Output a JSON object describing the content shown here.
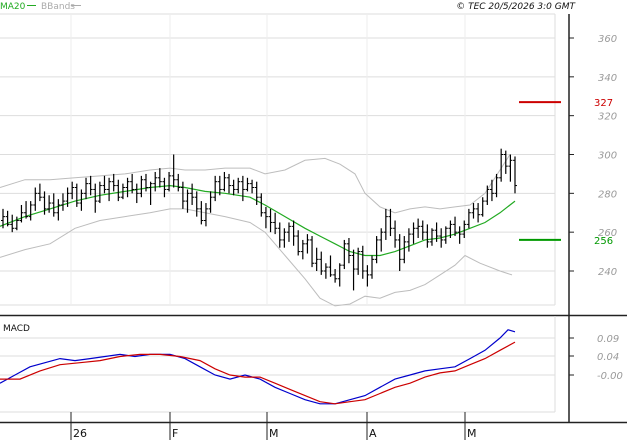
{
  "chart_data": [
    {
      "type": "ohlc",
      "panel": "price",
      "legend": [
        "MA20",
        "BBands"
      ],
      "copyright": "© TEC 20/5/2026 3:0 GMT",
      "y_ticks": [
        240,
        260,
        280,
        300,
        320,
        340,
        360
      ],
      "ylim": [
        220,
        370
      ],
      "grid": true,
      "x_labels": [
        "26",
        "F",
        "M",
        "A",
        "M"
      ],
      "levels": [
        {
          "label": "327",
          "value": 327,
          "color": "#cc0000"
        },
        {
          "label": "256",
          "value": 256,
          "color": "#009900"
        }
      ],
      "ohlc": [
        [
          266,
          272,
          262,
          268
        ],
        [
          268,
          271,
          263,
          264
        ],
        [
          264,
          269,
          260,
          262
        ],
        [
          262,
          268,
          261,
          266
        ],
        [
          266,
          274,
          265,
          270
        ],
        [
          270,
          276,
          267,
          268
        ],
        [
          268,
          276,
          266,
          274
        ],
        [
          274,
          283,
          271,
          280
        ],
        [
          280,
          285,
          276,
          278
        ],
        [
          278,
          281,
          269,
          272
        ],
        [
          272,
          279,
          270,
          275
        ],
        [
          275,
          280,
          268,
          270
        ],
        [
          270,
          277,
          266,
          274
        ],
        [
          274,
          280,
          271,
          276
        ],
        [
          276,
          283,
          273,
          280
        ],
        [
          280,
          286,
          277,
          283
        ],
        [
          283,
          285,
          273,
          275
        ],
        [
          275,
          282,
          271,
          280
        ],
        [
          280,
          288,
          277,
          285
        ],
        [
          285,
          289,
          279,
          282
        ],
        [
          282,
          285,
          270,
          276
        ],
        [
          276,
          286,
          275,
          284
        ],
        [
          284,
          289,
          280,
          282
        ],
        [
          282,
          288,
          276,
          286
        ],
        [
          286,
          290,
          281,
          284
        ],
        [
          284,
          287,
          276,
          278
        ],
        [
          278,
          285,
          277,
          283
        ],
        [
          283,
          288,
          278,
          286
        ],
        [
          286,
          290,
          280,
          282
        ],
        [
          282,
          285,
          275,
          280
        ],
        [
          280,
          289,
          278,
          287
        ],
        [
          287,
          290,
          281,
          283
        ],
        [
          283,
          286,
          274,
          285
        ],
        [
          285,
          291,
          281,
          288
        ],
        [
          288,
          293,
          283,
          286
        ],
        [
          286,
          288,
          278,
          282
        ],
        [
          282,
          291,
          281,
          289
        ],
        [
          289,
          300,
          283,
          287
        ],
        [
          287,
          290,
          281,
          283
        ],
        [
          283,
          286,
          272,
          276
        ],
        [
          276,
          282,
          270,
          280
        ],
        [
          280,
          285,
          274,
          278
        ],
        [
          278,
          281,
          268,
          272
        ],
        [
          272,
          276,
          264,
          266
        ],
        [
          266,
          275,
          263,
          272
        ],
        [
          272,
          281,
          270,
          278
        ],
        [
          278,
          289,
          276,
          286
        ],
        [
          286,
          289,
          279,
          282
        ],
        [
          282,
          291,
          281,
          288
        ],
        [
          288,
          290,
          280,
          284
        ],
        [
          284,
          287,
          279,
          282
        ],
        [
          282,
          288,
          280,
          286
        ],
        [
          286,
          289,
          276,
          282
        ],
        [
          282,
          288,
          281,
          285
        ],
        [
          285,
          287,
          280,
          283
        ],
        [
          283,
          286,
          274,
          278
        ],
        [
          278,
          280,
          268,
          270
        ],
        [
          270,
          273,
          262,
          268
        ],
        [
          268,
          272,
          260,
          265
        ],
        [
          265,
          270,
          259,
          262
        ],
        [
          262,
          265,
          252,
          256
        ],
        [
          256,
          262,
          252,
          260
        ],
        [
          260,
          265,
          255,
          263
        ],
        [
          263,
          266,
          253,
          258
        ],
        [
          258,
          261,
          248,
          250
        ],
        [
          250,
          256,
          246,
          254
        ],
        [
          254,
          259,
          249,
          256
        ],
        [
          256,
          258,
          242,
          244
        ],
        [
          244,
          252,
          240,
          246
        ],
        [
          246,
          250,
          238,
          240
        ],
        [
          240,
          244,
          236,
          242
        ],
        [
          242,
          248,
          237,
          238
        ],
        [
          238,
          241,
          234,
          236
        ],
        [
          236,
          244,
          232,
          243
        ],
        [
          243,
          256,
          241,
          254
        ],
        [
          254,
          257,
          244,
          248
        ],
        [
          248,
          251,
          230,
          241
        ],
        [
          241,
          252,
          238,
          250
        ],
        [
          250,
          253,
          236,
          240
        ],
        [
          240,
          243,
          232,
          238
        ],
        [
          238,
          248,
          236,
          246
        ],
        [
          246,
          258,
          244,
          256
        ],
        [
          256,
          262,
          250,
          260
        ],
        [
          260,
          272,
          256,
          268
        ],
        [
          268,
          272,
          258,
          262
        ],
        [
          262,
          266,
          252,
          256
        ],
        [
          256,
          259,
          240,
          246
        ],
        [
          246,
          258,
          244,
          255
        ],
        [
          255,
          262,
          250,
          259
        ],
        [
          259,
          265,
          254,
          262
        ],
        [
          262,
          267,
          257,
          263
        ],
        [
          263,
          266,
          256,
          260
        ],
        [
          260,
          264,
          252,
          255
        ],
        [
          255,
          262,
          253,
          261
        ],
        [
          261,
          265,
          255,
          258
        ],
        [
          258,
          262,
          252,
          256
        ],
        [
          256,
          263,
          254,
          262
        ],
        [
          262,
          266,
          257,
          264
        ],
        [
          264,
          268,
          258,
          260
        ],
        [
          260,
          263,
          254,
          259
        ],
        [
          259,
          266,
          257,
          264
        ],
        [
          264,
          272,
          262,
          270
        ],
        [
          270,
          275,
          267,
          272
        ],
        [
          272,
          275,
          265,
          269
        ],
        [
          269,
          278,
          268,
          276
        ],
        [
          276,
          284,
          274,
          282
        ],
        [
          282,
          287,
          276,
          280
        ],
        [
          280,
          290,
          278,
          288
        ],
        [
          288,
          303,
          286,
          300
        ],
        [
          300,
          302,
          290,
          294
        ],
        [
          294,
          300,
          286,
          297
        ],
        [
          297,
          299,
          280,
          284
        ]
      ],
      "ma20": [
        [
          0,
          263
        ],
        [
          25,
          268
        ],
        [
          50,
          272
        ],
        [
          75,
          276
        ],
        [
          100,
          279
        ],
        [
          125,
          281
        ],
        [
          150,
          283
        ],
        [
          170,
          284
        ],
        [
          185,
          283
        ],
        [
          205,
          281
        ],
        [
          225,
          280
        ],
        [
          250,
          278
        ],
        [
          265,
          274
        ],
        [
          285,
          268
        ],
        [
          305,
          262
        ],
        [
          320,
          258
        ],
        [
          335,
          254
        ],
        [
          350,
          250
        ],
        [
          365,
          248
        ],
        [
          380,
          248
        ],
        [
          395,
          250
        ],
        [
          410,
          253
        ],
        [
          425,
          256
        ],
        [
          440,
          257
        ],
        [
          455,
          259
        ],
        [
          470,
          262
        ],
        [
          485,
          265
        ],
        [
          500,
          270
        ],
        [
          510,
          274
        ],
        [
          515,
          276
        ]
      ],
      "bb_upper": [
        [
          0,
          283
        ],
        [
          25,
          287
        ],
        [
          50,
          287
        ],
        [
          75,
          288
        ],
        [
          100,
          289
        ],
        [
          125,
          290
        ],
        [
          150,
          292
        ],
        [
          170,
          293
        ],
        [
          185,
          292
        ],
        [
          205,
          292
        ],
        [
          225,
          293
        ],
        [
          250,
          293
        ],
        [
          265,
          290
        ],
        [
          285,
          292
        ],
        [
          305,
          297
        ],
        [
          325,
          298
        ],
        [
          340,
          295
        ],
        [
          355,
          290
        ],
        [
          365,
          280
        ],
        [
          380,
          273
        ],
        [
          395,
          270
        ],
        [
          410,
          272
        ],
        [
          425,
          273
        ],
        [
          440,
          272
        ],
        [
          455,
          273
        ],
        [
          470,
          274
        ],
        [
          485,
          280
        ],
        [
          500,
          292
        ],
        [
          510,
          300
        ]
      ],
      "bb_lower": [
        [
          0,
          247
        ],
        [
          25,
          251
        ],
        [
          50,
          254
        ],
        [
          75,
          262
        ],
        [
          100,
          266
        ],
        [
          125,
          268
        ],
        [
          150,
          270
        ],
        [
          170,
          272
        ],
        [
          185,
          272
        ],
        [
          205,
          270
        ],
        [
          225,
          268
        ],
        [
          250,
          265
        ],
        [
          265,
          260
        ],
        [
          285,
          248
        ],
        [
          305,
          236
        ],
        [
          320,
          226
        ],
        [
          335,
          222
        ],
        [
          350,
          223
        ],
        [
          365,
          227
        ],
        [
          380,
          226
        ],
        [
          395,
          229
        ],
        [
          410,
          230
        ],
        [
          425,
          233
        ],
        [
          440,
          238
        ],
        [
          455,
          243
        ],
        [
          465,
          248
        ],
        [
          480,
          244
        ],
        [
          500,
          240
        ],
        [
          512,
          238
        ]
      ]
    },
    {
      "type": "line",
      "panel": "indicator",
      "title": "MACD",
      "y_ticks": [
        "-0.00",
        "0.04",
        "0.09"
      ],
      "series": [
        {
          "name": "",
          "color": "#0000cc",
          "values": [
            [
              0,
              -0.02
            ],
            [
              15,
              0.0
            ],
            [
              30,
              0.02
            ],
            [
              45,
              0.03
            ],
            [
              60,
              0.04
            ],
            [
              75,
              0.035
            ],
            [
              90,
              0.04
            ],
            [
              105,
              0.045
            ],
            [
              120,
              0.05
            ],
            [
              135,
              0.045
            ],
            [
              150,
              0.05
            ],
            [
              170,
              0.05
            ],
            [
              185,
              0.04
            ],
            [
              200,
              0.02
            ],
            [
              215,
              0.0
            ],
            [
              230,
              -0.01
            ],
            [
              245,
              0.0
            ],
            [
              260,
              -0.01
            ],
            [
              275,
              -0.03
            ],
            [
              290,
              -0.045
            ],
            [
              305,
              -0.06
            ],
            [
              320,
              -0.07
            ],
            [
              335,
              -0.07
            ],
            [
              350,
              -0.06
            ],
            [
              365,
              -0.05
            ],
            [
              380,
              -0.03
            ],
            [
              395,
              -0.01
            ],
            [
              410,
              0.0
            ],
            [
              425,
              0.01
            ],
            [
              440,
              0.015
            ],
            [
              455,
              0.02
            ],
            [
              470,
              0.04
            ],
            [
              485,
              0.06
            ],
            [
              500,
              0.09
            ],
            [
              508,
              0.11
            ],
            [
              515,
              0.105
            ]
          ]
        },
        {
          "name": "",
          "color": "#cc0000",
          "values": [
            [
              0,
              -0.01
            ],
            [
              20,
              -0.01
            ],
            [
              40,
              0.01
            ],
            [
              60,
              0.025
            ],
            [
              80,
              0.03
            ],
            [
              100,
              0.035
            ],
            [
              120,
              0.045
            ],
            [
              140,
              0.05
            ],
            [
              160,
              0.05
            ],
            [
              180,
              0.045
            ],
            [
              200,
              0.035
            ],
            [
              215,
              0.015
            ],
            [
              230,
              0.0
            ],
            [
              245,
              -0.005
            ],
            [
              260,
              -0.005
            ],
            [
              275,
              -0.02
            ],
            [
              290,
              -0.035
            ],
            [
              305,
              -0.05
            ],
            [
              320,
              -0.065
            ],
            [
              335,
              -0.07
            ],
            [
              350,
              -0.065
            ],
            [
              365,
              -0.06
            ],
            [
              380,
              -0.045
            ],
            [
              395,
              -0.03
            ],
            [
              410,
              -0.02
            ],
            [
              425,
              -0.005
            ],
            [
              440,
              0.005
            ],
            [
              455,
              0.01
            ],
            [
              470,
              0.025
            ],
            [
              485,
              0.04
            ],
            [
              500,
              0.06
            ],
            [
              515,
              0.08
            ]
          ]
        }
      ]
    }
  ]
}
